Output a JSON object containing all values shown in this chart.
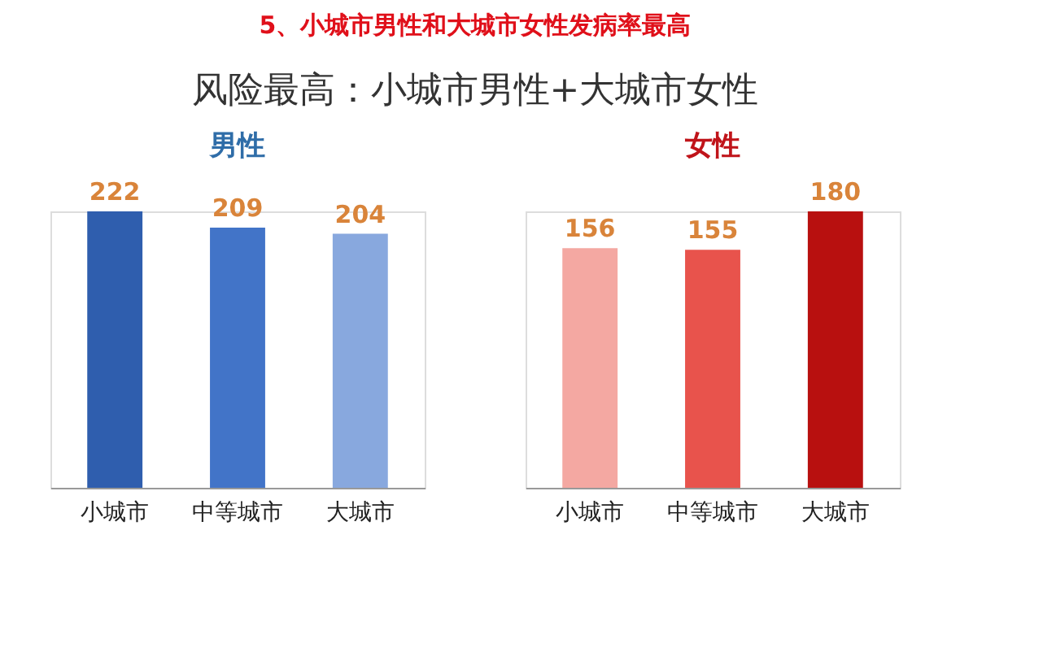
{
  "chart_data": [
    {
      "type": "bar",
      "title": "男性",
      "annotations": [
        "5、小城市男性和大城市女性发病率最高",
        "风险最高：小城市男性+大城市女性"
      ],
      "categories": [
        "小城市",
        "中等城市",
        "大城市"
      ],
      "values": [
        222,
        209,
        204
      ],
      "colors": [
        "#2f5eae",
        "#4274c8",
        "#88a8de"
      ],
      "data_labels": true
    },
    {
      "type": "bar",
      "title": "女性",
      "categories": [
        "小城市",
        "中等城市",
        "大城市"
      ],
      "values": [
        156,
        155,
        180
      ],
      "colors": [
        "#f4a8a2",
        "#e8534c",
        "#b8100f"
      ],
      "data_labels": true
    }
  ]
}
